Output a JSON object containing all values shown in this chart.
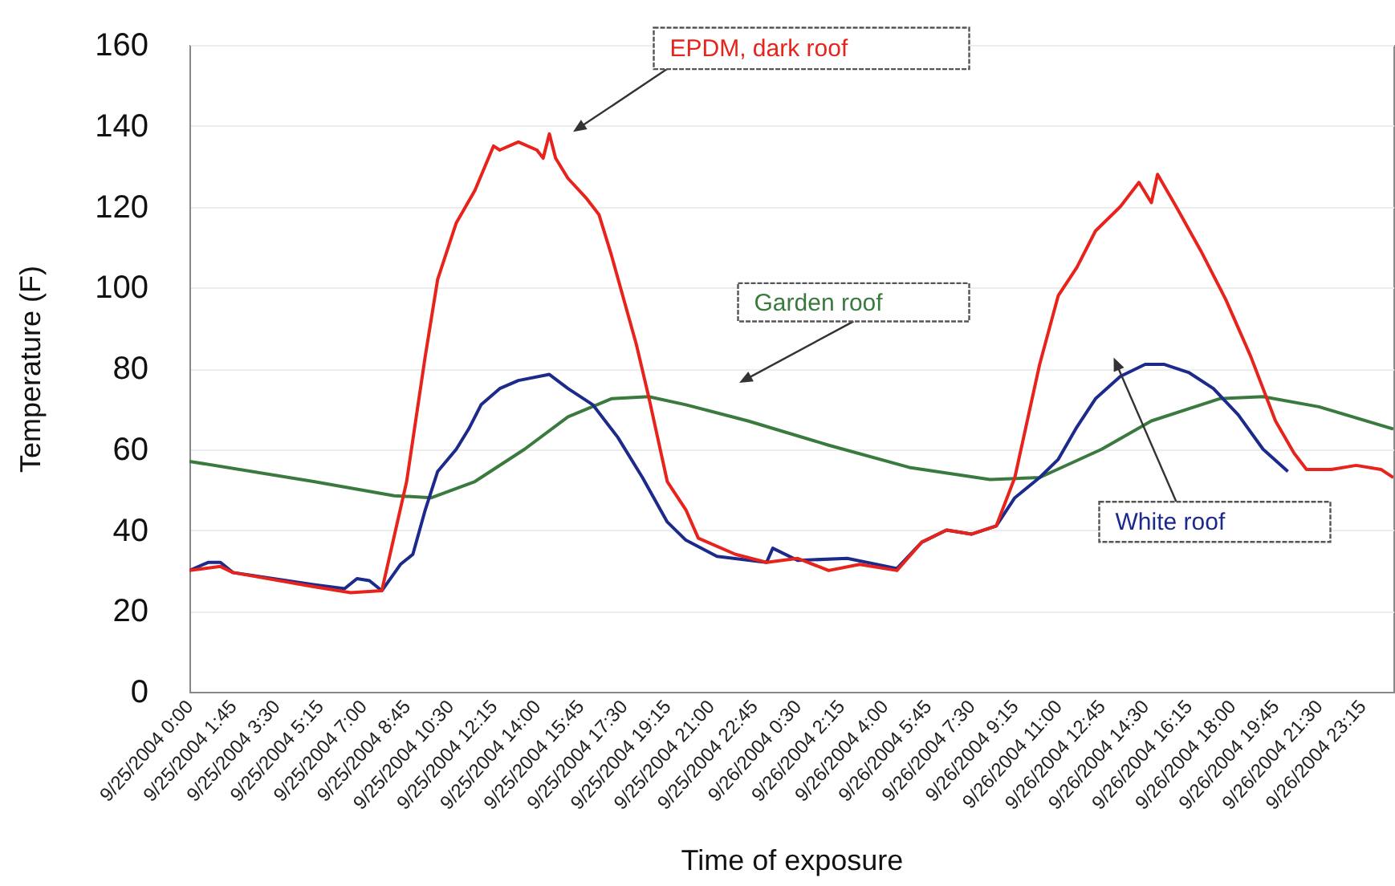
{
  "chart_data": {
    "type": "line",
    "xlabel": "Time of exposure",
    "ylabel": "Temperature (F)",
    "xlim": [
      "2004-09-25T00:00",
      "2004-09-27T00:30"
    ],
    "xticks": [
      {
        "value": "2004-09-25T00:00",
        "label": "9/25/2004 0:00"
      },
      {
        "value": "2004-09-25T01:45",
        "label": "9/25/2004 1:45"
      },
      {
        "value": "2004-09-25T03:30",
        "label": "9/25/2004 3:30"
      },
      {
        "value": "2004-09-25T05:15",
        "label": "9/25/2004 5:15"
      },
      {
        "value": "2004-09-25T07:00",
        "label": "9/25/2004 7:00"
      },
      {
        "value": "2004-09-25T08:45",
        "label": "9/25/2004 8:45"
      },
      {
        "value": "2004-09-25T10:30",
        "label": "9/25/2004 10:30"
      },
      {
        "value": "2004-09-25T12:15",
        "label": "9/25/2004 12:15"
      },
      {
        "value": "2004-09-25T14:00",
        "label": "9/25/2004 14:00"
      },
      {
        "value": "2004-09-25T15:45",
        "label": "9/25/2004 15:45"
      },
      {
        "value": "2004-09-25T17:30",
        "label": "9/25/2004 17:30"
      },
      {
        "value": "2004-09-25T19:15",
        "label": "9/25/2004 19:15"
      },
      {
        "value": "2004-09-25T21:00",
        "label": "9/25/2004 21:00"
      },
      {
        "value": "2004-09-25T22:45",
        "label": "9/25/2004 22:45"
      },
      {
        "value": "2004-09-26T00:30",
        "label": "9/26/2004 0:30"
      },
      {
        "value": "2004-09-26T02:15",
        "label": "9/26/2004 2:15"
      },
      {
        "value": "2004-09-26T04:00",
        "label": "9/26/2004 4:00"
      },
      {
        "value": "2004-09-26T05:45",
        "label": "9/26/2004 5:45"
      },
      {
        "value": "2004-09-26T07:30",
        "label": "9/26/2004 7:30"
      },
      {
        "value": "2004-09-26T09:15",
        "label": "9/26/2004 9:15"
      },
      {
        "value": "2004-09-26T11:00",
        "label": "9/26/2004 11:00"
      },
      {
        "value": "2004-09-26T12:45",
        "label": "9/26/2004 12:45"
      },
      {
        "value": "2004-09-26T14:30",
        "label": "9/26/2004 14:30"
      },
      {
        "value": "2004-09-26T16:15",
        "label": "9/26/2004 16:15"
      },
      {
        "value": "2004-09-26T18:00",
        "label": "9/26/2004 18:00"
      },
      {
        "value": "2004-09-26T19:45",
        "label": "9/26/2004 19:45"
      },
      {
        "value": "2004-09-26T21:30",
        "label": "9/26/2004 21:30"
      },
      {
        "value": "2004-09-26T23:15",
        "label": "9/26/2004 23:15"
      }
    ],
    "ylim": [
      0,
      160
    ],
    "yticks": [
      0,
      20,
      40,
      60,
      80,
      100,
      120,
      140,
      160
    ],
    "grid": "y",
    "series": [
      {
        "name": "Garden roof",
        "color": "#3a7a3e",
        "x": [
          "2004-09-25T00:00",
          "2004-09-25T05:00",
          "2004-09-25T08:15",
          "2004-09-25T09:45",
          "2004-09-25T11:30",
          "2004-09-25T13:30",
          "2004-09-25T15:15",
          "2004-09-25T17:00",
          "2004-09-25T18:30",
          "2004-09-25T20:00",
          "2004-09-25T22:30",
          "2004-09-26T01:45",
          "2004-09-26T05:00",
          "2004-09-26T08:15",
          "2004-09-26T10:15",
          "2004-09-26T12:45",
          "2004-09-26T14:45",
          "2004-09-26T17:30",
          "2004-09-26T19:15",
          "2004-09-26T21:30",
          "2004-09-27T00:30"
        ],
        "values": [
          57,
          52,
          48.5,
          48,
          52,
          60,
          68,
          72.5,
          73,
          71,
          67,
          61,
          55.5,
          52.5,
          53,
          60,
          67,
          72.5,
          73,
          70.5,
          65
        ]
      },
      {
        "name": "White roof",
        "color": "#1c2a8c",
        "x": [
          "2004-09-25T00:00",
          "2004-09-25T00:45",
          "2004-09-25T01:15",
          "2004-09-25T01:45",
          "2004-09-25T05:00",
          "2004-09-25T06:15",
          "2004-09-25T06:45",
          "2004-09-25T07:15",
          "2004-09-25T07:45",
          "2004-09-25T08:30",
          "2004-09-25T09:00",
          "2004-09-25T09:30",
          "2004-09-25T10:00",
          "2004-09-25T10:45",
          "2004-09-25T11:15",
          "2004-09-25T11:45",
          "2004-09-25T12:30",
          "2004-09-25T13:15",
          "2004-09-25T14:30",
          "2004-09-25T15:15",
          "2004-09-25T16:15",
          "2004-09-25T17:15",
          "2004-09-25T18:15",
          "2004-09-25T19:15",
          "2004-09-25T20:00",
          "2004-09-25T21:15",
          "2004-09-25T23:15",
          "2004-09-25T23:30",
          "2004-09-26T00:30",
          "2004-09-26T02:30",
          "2004-09-26T04:30",
          "2004-09-26T05:30",
          "2004-09-26T06:30",
          "2004-09-26T07:30",
          "2004-09-26T08:30",
          "2004-09-26T09:15",
          "2004-09-26T10:15",
          "2004-09-26T11:00",
          "2004-09-26T11:45",
          "2004-09-26T12:30",
          "2004-09-26T13:30",
          "2004-09-26T14:30",
          "2004-09-26T15:15",
          "2004-09-26T16:15",
          "2004-09-26T17:15",
          "2004-09-26T18:15",
          "2004-09-26T19:15",
          "2004-09-26T20:15"
        ],
        "values": [
          30,
          32,
          32,
          29.5,
          26.5,
          25.5,
          28,
          27.5,
          25,
          31.5,
          34,
          45,
          54.5,
          60,
          65,
          71,
          75,
          77,
          78.5,
          75,
          71,
          63,
          53,
          42,
          37.5,
          33.5,
          32,
          35.5,
          32.5,
          33,
          30.5,
          37,
          40,
          39,
          41,
          48,
          53,
          57.5,
          65.5,
          72.5,
          78,
          81,
          81,
          79,
          75,
          68.5,
          60,
          54.5
        ]
      },
      {
        "name": "EPDM, dark roof",
        "color": "#e8231b",
        "x": [
          "2004-09-25T00:00",
          "2004-09-25T01:15",
          "2004-09-25T01:45",
          "2004-09-25T05:00",
          "2004-09-25T06:30",
          "2004-09-25T07:45",
          "2004-09-25T08:45",
          "2004-09-25T09:30",
          "2004-09-25T10:00",
          "2004-09-25T10:45",
          "2004-09-25T11:30",
          "2004-09-25T12:15",
          "2004-09-25T12:30",
          "2004-09-25T13:15",
          "2004-09-25T14:00",
          "2004-09-25T14:15",
          "2004-09-25T14:30",
          "2004-09-25T14:45",
          "2004-09-25T15:15",
          "2004-09-25T16:00",
          "2004-09-25T16:30",
          "2004-09-25T17:00",
          "2004-09-25T18:00",
          "2004-09-25T18:30",
          "2004-09-25T19:15",
          "2004-09-25T20:00",
          "2004-09-25T20:30",
          "2004-09-25T22:00",
          "2004-09-25T23:15",
          "2004-09-26T00:30",
          "2004-09-26T01:45",
          "2004-09-26T03:00",
          "2004-09-26T04:30",
          "2004-09-26T05:30",
          "2004-09-26T06:30",
          "2004-09-26T07:30",
          "2004-09-26T08:30",
          "2004-09-26T09:15",
          "2004-09-26T10:15",
          "2004-09-26T11:00",
          "2004-09-26T11:45",
          "2004-09-26T12:30",
          "2004-09-26T13:30",
          "2004-09-26T14:15",
          "2004-09-26T14:45",
          "2004-09-26T15:00",
          "2004-09-26T15:45",
          "2004-09-26T16:45",
          "2004-09-26T17:45",
          "2004-09-26T18:45",
          "2004-09-26T19:45",
          "2004-09-26T20:30",
          "2004-09-26T21:00",
          "2004-09-26T22:00",
          "2004-09-26T23:00",
          "2004-09-27T00:00",
          "2004-09-27T00:30"
        ],
        "values": [
          30,
          31,
          29.5,
          26,
          24.5,
          25,
          52,
          83,
          102,
          116,
          124,
          135,
          134,
          136,
          134,
          132,
          138,
          132,
          127,
          122,
          118,
          108,
          86,
          73,
          52,
          45,
          38,
          34,
          32,
          33,
          30,
          31.5,
          30,
          37,
          40,
          39,
          41,
          53,
          81,
          98,
          105,
          114,
          120,
          126,
          121,
          128,
          120,
          109,
          97,
          83,
          67,
          59,
          55,
          55,
          56,
          55,
          53
        ]
      }
    ]
  }
}
